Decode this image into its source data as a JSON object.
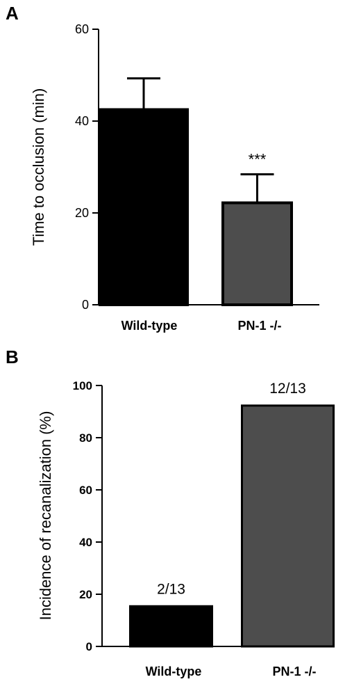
{
  "chart_data": [
    {
      "panel": "A",
      "type": "bar",
      "title": "",
      "ylabel": "Time to occlusion (min)",
      "xlabel": "",
      "categories": [
        "Wild-type",
        "PN-1 -/-"
      ],
      "values": [
        42.5,
        22.2
      ],
      "errors": [
        6.8,
        6.2
      ],
      "annotations": [
        "",
        "***"
      ],
      "ylim": [
        0,
        60
      ],
      "yticks": [
        "0",
        "20",
        "40",
        "60"
      ],
      "colors": [
        "#000000",
        "#4d4d4d"
      ],
      "grid": false
    },
    {
      "panel": "B",
      "type": "bar",
      "title": "",
      "ylabel": "Incidence of recanalization (%)",
      "xlabel": "",
      "categories": [
        "Wild-type",
        "PN-1 -/-"
      ],
      "values": [
        15.4,
        92.3
      ],
      "annotations": [
        "2/13",
        "12/13"
      ],
      "ylim": [
        0,
        100
      ],
      "yticks": [
        "0",
        "20",
        "40",
        "60",
        "80",
        "100"
      ],
      "colors": [
        "#000000",
        "#4d4d4d"
      ],
      "grid": false
    }
  ]
}
